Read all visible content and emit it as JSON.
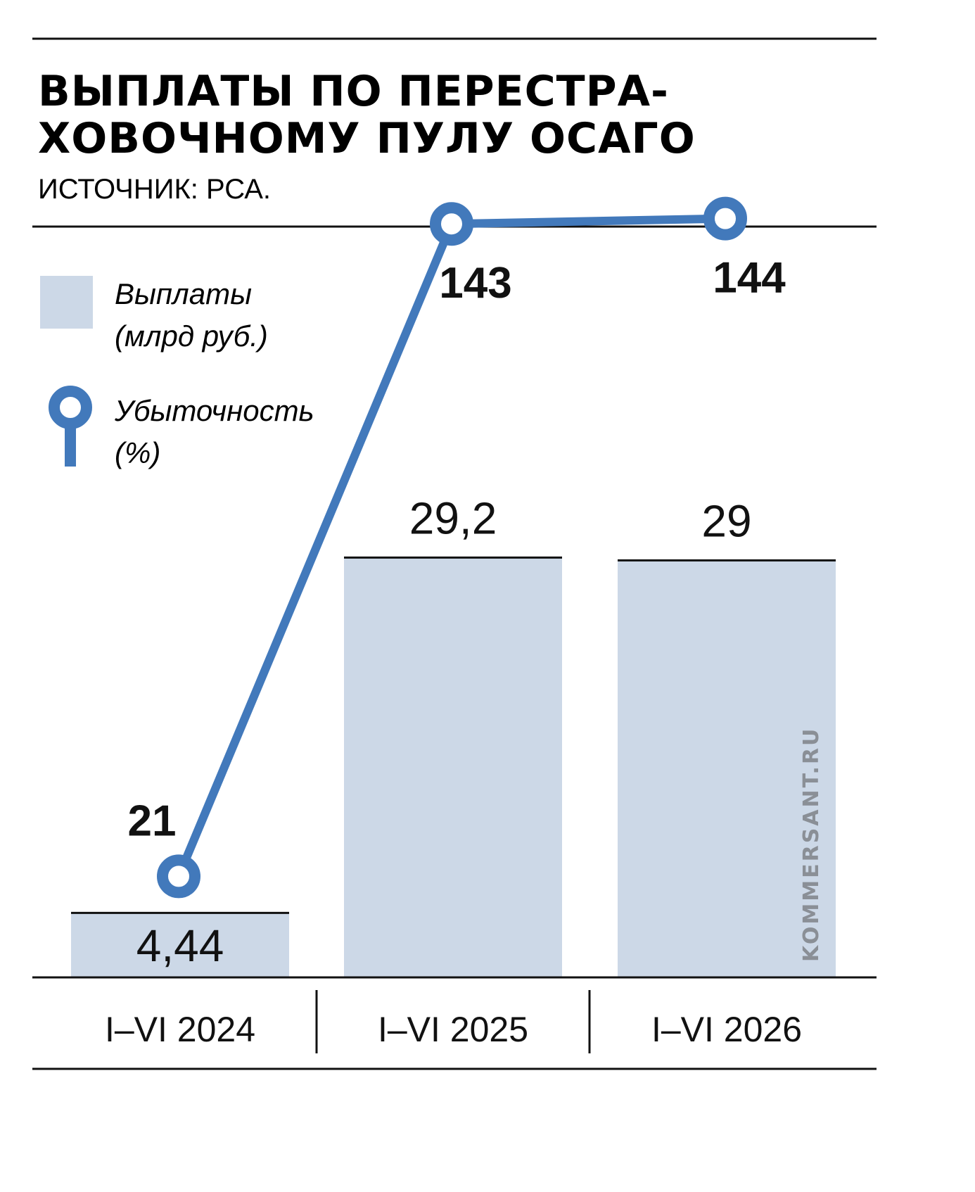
{
  "header": {
    "title_line1": "ВЫПЛАТЫ ПО ПЕРЕСТРА-",
    "title_line2": "ХОВОЧНОМУ ПУЛУ ОСАГО",
    "source": "ИСТОЧНИК: РСА."
  },
  "watermark": "KOMMERSANT.RU",
  "colors": {
    "bar": "#ccd8e7",
    "line": "#4279bb",
    "rule": "#111111",
    "text": "#111111",
    "watermark": "#8a8f96"
  },
  "chart_data": {
    "type": "bar",
    "categories": [
      "I–VI 2024",
      "I–VI 2025",
      "I–VI 2026"
    ],
    "series": [
      {
        "name": "Выплаты (млрд руб.)",
        "kind": "bar",
        "values": [
          4.44,
          29.2,
          29
        ],
        "labels": [
          "4,44",
          "29,2",
          "29"
        ]
      },
      {
        "name": "Убыточность (%)",
        "kind": "line",
        "values": [
          21,
          143,
          144
        ],
        "labels": [
          "21",
          "143",
          "144"
        ]
      }
    ],
    "legend": {
      "position": "top-left",
      "bar_line1": "Выплаты",
      "bar_line2": "(млрд руб.)",
      "line_line1": "Убыточность",
      "line_line2": "(%)"
    },
    "grid": false
  }
}
